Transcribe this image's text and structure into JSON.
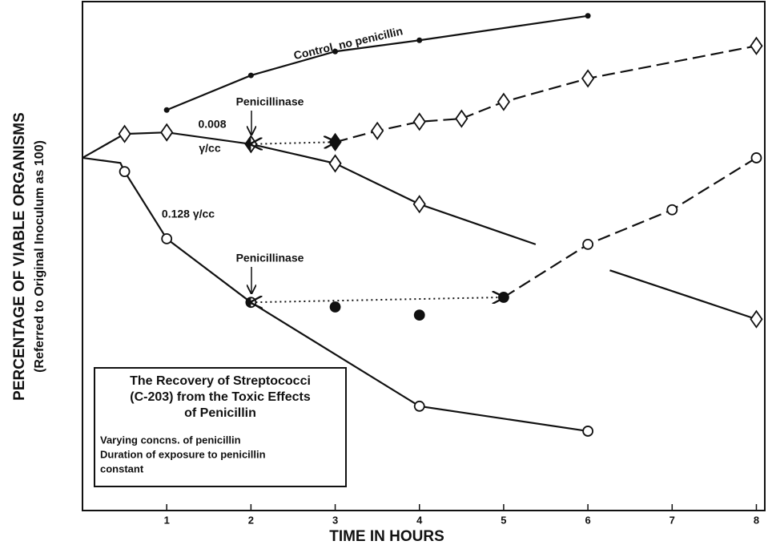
{
  "chart_data": {
    "type": "line",
    "xlabel": "TIME IN HOURS",
    "ylabel": "PERCENTAGE OF VIABLE ORGANISMS",
    "ylabel2": "(Referred to Original Inoculum as 100)",
    "xlim": [
      0,
      8.1
    ],
    "ylim": [
      0,
      100
    ],
    "xticks": [
      1,
      2,
      3,
      4,
      5,
      6,
      7,
      8
    ],
    "color": "#111111",
    "series": [
      {
        "style": "solid",
        "x": [
          1,
          2,
          3,
          4,
          6
        ],
        "values": [
          78.7,
          85.5,
          90.2,
          92.4,
          97.2
        ],
        "markers": [
          "dot",
          "dot",
          "dot",
          "dot",
          "dot"
        ]
      },
      {
        "style": "solid",
        "x": [
          0,
          0.5,
          1,
          2,
          3,
          4,
          5.38,
          5.8,
          6.26,
          8
        ],
        "values": [
          69.3,
          74.0,
          74.3,
          72.0,
          68.2,
          60.2,
          52.3,
          null,
          47.2,
          37.6
        ],
        "markers": [
          "none",
          "diamond",
          "diamond",
          "diamond-half",
          "diamond",
          "diamond",
          "none",
          "none",
          "none",
          "diamond"
        ]
      },
      {
        "style": "dashed",
        "x": [
          3,
          3.5,
          4,
          4.5,
          5,
          6,
          8
        ],
        "values": [
          72.4,
          74.6,
          76.4,
          77.0,
          80.3,
          84.9,
          91.3
        ],
        "markers": [
          "diamond-filled",
          "diamond",
          "diamond",
          "diamond",
          "diamond",
          "diamond",
          "diamond"
        ]
      },
      {
        "style": "dotted-arrow",
        "x": [
          2,
          3
        ],
        "values": [
          72.0,
          72.4
        ],
        "markers": [
          "none",
          "none"
        ]
      },
      {
        "style": "solid",
        "x": [
          0,
          0.45,
          0.5,
          1,
          2,
          4,
          6
        ],
        "values": [
          69.3,
          68.3,
          66.6,
          53.4,
          40.9,
          20.5,
          15.6
        ],
        "markers": [
          "none",
          "none",
          "circle",
          "circle",
          "circle-half",
          "circle",
          "circle"
        ]
      },
      {
        "style": "dashed",
        "x": [
          5,
          6,
          7,
          8
        ],
        "values": [
          41.9,
          52.3,
          59.1,
          69.3
        ],
        "markers": [
          "circle-filled",
          "circle",
          "circle",
          "circle"
        ]
      },
      {
        "style": "dotted-arrow",
        "x": [
          2,
          5
        ],
        "values": [
          40.9,
          41.9
        ],
        "markers": [
          "none",
          "none"
        ]
      },
      {
        "style": "none",
        "x": [
          3,
          4
        ],
        "values": [
          40.0,
          38.4
        ],
        "markers": [
          "circle-filled",
          "circle-filled"
        ]
      }
    ],
    "annotations": [
      "Control, no penicillin",
      "Penicillinase",
      "0.008",
      "γ/cc",
      "0.128 γ/cc",
      "Penicillinase"
    ],
    "box": {
      "title": [
        "The Recovery of Streptococci",
        "(C-203) from the Toxic Effects",
        "of Penicillin"
      ],
      "notes": [
        "Varying concns. of penicillin",
        "Duration of exposure to penicillin",
        "constant"
      ]
    }
  }
}
